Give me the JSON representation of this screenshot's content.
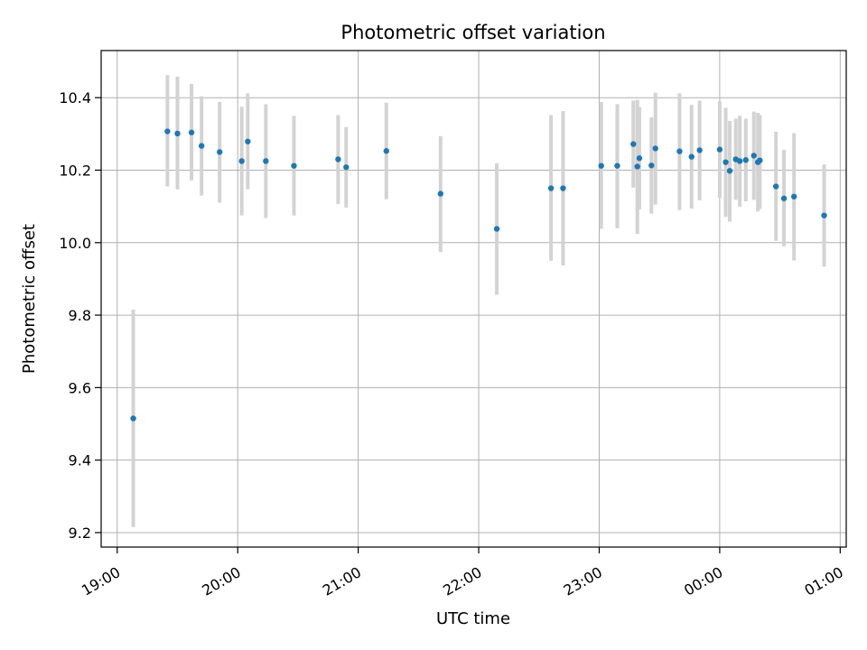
{
  "chart_data": {
    "type": "scatter",
    "title": "Photometric offset variation",
    "xlabel": "UTC time",
    "ylabel": "Photometric offset",
    "x_unit": "UTC time (HH:MM, night spanning midnight)",
    "x_range": [
      "18:52",
      "01:03"
    ],
    "ylim": [
      9.16,
      10.53
    ],
    "x_ticks": [
      "19:00",
      "20:00",
      "21:00",
      "22:00",
      "23:00",
      "00:00",
      "01:00"
    ],
    "y_ticks": [
      9.2,
      9.4,
      9.6,
      9.8,
      10.0,
      10.2,
      10.4
    ],
    "y_tick_labels": [
      "9.2",
      "9.4",
      "9.6",
      "9.8",
      "10.0",
      "10.2",
      "10.4"
    ],
    "grid": true,
    "marker_color": "#1f77b4",
    "errorbar_color": "#d3d3d3",
    "points": [
      {
        "x": "19:08",
        "y": 9.515,
        "lo": 9.215,
        "hi": 9.815
      },
      {
        "x": "19:25",
        "y": 10.307,
        "lo": 10.155,
        "hi": 10.462
      },
      {
        "x": "19:30",
        "y": 10.301,
        "lo": 10.147,
        "hi": 10.458
      },
      {
        "x": "19:37",
        "y": 10.304,
        "lo": 10.172,
        "hi": 10.438
      },
      {
        "x": "19:42",
        "y": 10.267,
        "lo": 10.13,
        "hi": 10.404
      },
      {
        "x": "19:51",
        "y": 10.25,
        "lo": 10.11,
        "hi": 10.388
      },
      {
        "x": "20:02",
        "y": 10.225,
        "lo": 10.075,
        "hi": 10.375
      },
      {
        "x": "20:05",
        "y": 10.279,
        "lo": 10.147,
        "hi": 10.412
      },
      {
        "x": "20:14",
        "y": 10.225,
        "lo": 10.068,
        "hi": 10.382
      },
      {
        "x": "20:28",
        "y": 10.212,
        "lo": 10.075,
        "hi": 10.35
      },
      {
        "x": "20:50",
        "y": 10.23,
        "lo": 10.107,
        "hi": 10.352
      },
      {
        "x": "20:54",
        "y": 10.208,
        "lo": 10.097,
        "hi": 10.319
      },
      {
        "x": "21:14",
        "y": 10.253,
        "lo": 10.12,
        "hi": 10.386
      },
      {
        "x": "21:41",
        "y": 10.135,
        "lo": 9.974,
        "hi": 10.294
      },
      {
        "x": "22:09",
        "y": 10.038,
        "lo": 9.856,
        "hi": 10.219
      },
      {
        "x": "22:36",
        "y": 10.15,
        "lo": 9.95,
        "hi": 10.352
      },
      {
        "x": "22:42",
        "y": 10.15,
        "lo": 9.937,
        "hi": 10.363
      },
      {
        "x": "23:01",
        "y": 10.212,
        "lo": 10.038,
        "hi": 10.388
      },
      {
        "x": "23:09",
        "y": 10.212,
        "lo": 10.04,
        "hi": 10.382
      },
      {
        "x": "23:17",
        "y": 10.272,
        "lo": 10.152,
        "hi": 10.392
      },
      {
        "x": "23:19",
        "y": 10.21,
        "lo": 10.024,
        "hi": 10.394
      },
      {
        "x": "23:20",
        "y": 10.233,
        "lo": 10.092,
        "hi": 10.374
      },
      {
        "x": "23:26",
        "y": 10.213,
        "lo": 10.08,
        "hi": 10.346
      },
      {
        "x": "23:28",
        "y": 10.26,
        "lo": 10.105,
        "hi": 10.414
      },
      {
        "x": "23:40",
        "y": 10.252,
        "lo": 10.09,
        "hi": 10.412
      },
      {
        "x": "23:46",
        "y": 10.237,
        "lo": 10.094,
        "hi": 10.38
      },
      {
        "x": "23:50",
        "y": 10.255,
        "lo": 10.117,
        "hi": 10.392
      },
      {
        "x": "00:00",
        "y": 10.257,
        "lo": 10.124,
        "hi": 10.39
      },
      {
        "x": "00:03",
        "y": 10.222,
        "lo": 10.071,
        "hi": 10.372
      },
      {
        "x": "00:05",
        "y": 10.198,
        "lo": 10.058,
        "hi": 10.336
      },
      {
        "x": "00:08",
        "y": 10.23,
        "lo": 10.118,
        "hi": 10.342
      },
      {
        "x": "00:10",
        "y": 10.225,
        "lo": 10.099,
        "hi": 10.35
      },
      {
        "x": "00:13",
        "y": 10.228,
        "lo": 10.114,
        "hi": 10.342
      },
      {
        "x": "00:17",
        "y": 10.24,
        "lo": 10.118,
        "hi": 10.362
      },
      {
        "x": "00:19",
        "y": 10.222,
        "lo": 10.086,
        "hi": 10.358
      },
      {
        "x": "00:20",
        "y": 10.227,
        "lo": 10.093,
        "hi": 10.352
      },
      {
        "x": "00:28",
        "y": 10.155,
        "lo": 10.005,
        "hi": 10.306
      },
      {
        "x": "00:32",
        "y": 10.122,
        "lo": 9.99,
        "hi": 10.256
      },
      {
        "x": "00:37",
        "y": 10.127,
        "lo": 9.951,
        "hi": 10.302
      },
      {
        "x": "00:52",
        "y": 10.075,
        "lo": 9.934,
        "hi": 10.216
      }
    ]
  }
}
